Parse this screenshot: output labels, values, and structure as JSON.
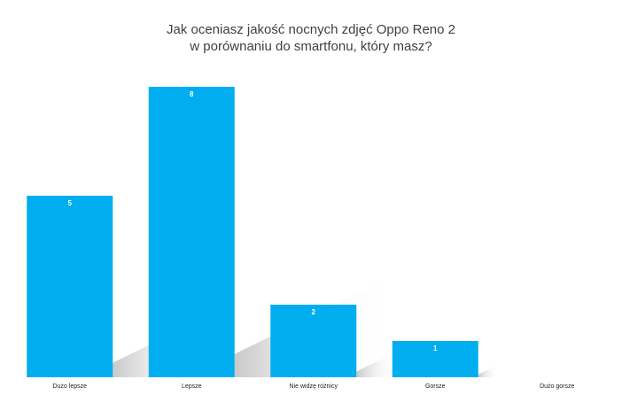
{
  "chart_data": {
    "type": "bar",
    "title_lines": [
      "Jak oceniasz jakość nocnych zdjęć Oppo Reno 2",
      "w porównaniu do smartfonu, który masz?"
    ],
    "categories": [
      "Dużo lepsze",
      "Lepsze",
      "Nie widzę różnicy",
      "Gorsze",
      "Dużo gorsze"
    ],
    "values": [
      5,
      8,
      2,
      1,
      0
    ],
    "data_labels": [
      "5",
      "8",
      "2",
      "1",
      ""
    ],
    "ylim": [
      0,
      8
    ],
    "grid": false,
    "legend": "none",
    "bar_color": "#00aeef",
    "shadow_color": "#cfcfcf"
  }
}
